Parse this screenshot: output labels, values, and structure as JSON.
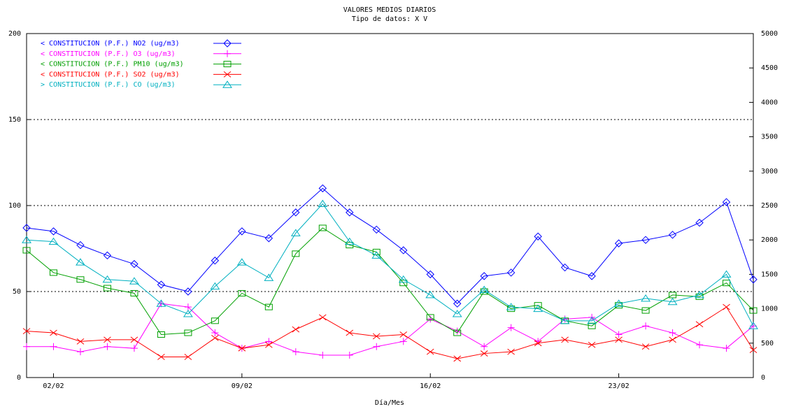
{
  "chart_data": {
    "type": "line",
    "title": "VALORES MEDIOS DIARIOS",
    "subtitle": "Tipo de datos:  X V",
    "x_label": "Día/Mes",
    "categories": [
      null,
      "02/02",
      null,
      null,
      null,
      null,
      null,
      null,
      "09/02",
      null,
      null,
      null,
      null,
      null,
      null,
      "16/02",
      null,
      null,
      null,
      null,
      null,
      null,
      "23/02",
      null,
      null,
      null,
      null,
      null
    ],
    "ylim": [
      0,
      200
    ],
    "yticks": [
      0,
      50,
      100,
      150,
      200
    ],
    "y2lim": [
      0,
      5000
    ],
    "y2ticks": [
      0,
      500,
      1000,
      1500,
      2000,
      2500,
      3000,
      3500,
      4000,
      4500,
      5000
    ],
    "grid": true,
    "legend": "top-left",
    "series": [
      {
        "name": "< CONSTITUCION (P.F.) NO2  (ug/m3)",
        "color": "#0000ff",
        "marker": "diamond",
        "values": [
          87,
          85,
          77,
          71,
          66,
          54,
          50,
          68,
          85,
          81,
          96,
          110,
          96,
          86,
          74,
          60,
          43,
          59,
          61,
          82,
          64,
          59,
          78,
          80,
          83,
          90,
          102,
          57
        ]
      },
      {
        "name": "< CONSTITUCION (P.F.) O3  (ug/m3)",
        "color": "#ff00ff",
        "marker": "plus",
        "values": [
          18,
          18,
          15,
          18,
          17,
          43,
          41,
          26,
          17,
          21,
          15,
          13,
          13,
          18,
          21,
          34,
          27,
          18,
          29,
          21,
          34,
          35,
          25,
          30,
          26,
          19,
          17,
          30
        ]
      },
      {
        "name": "< CONSTITUCION (P.F.) PM10  (ug/m3)",
        "color": "#00a000",
        "marker": "square",
        "values": [
          74,
          61,
          57,
          52,
          49,
          25,
          26,
          33,
          49,
          41,
          72,
          87,
          77,
          73,
          55,
          35,
          26,
          50,
          40,
          42,
          33,
          30,
          42,
          39,
          48,
          47,
          55,
          39
        ]
      },
      {
        "name": "< CONSTITUCION (P.F.) SO2  (ug/m3)",
        "color": "#ff0000",
        "marker": "x",
        "values": [
          27,
          26,
          21,
          22,
          22,
          12,
          12,
          23,
          17,
          19,
          28,
          35,
          26,
          24,
          25,
          15,
          11,
          14,
          15,
          20,
          22,
          19,
          22,
          18,
          22,
          31,
          41,
          16
        ]
      },
      {
        "name": "> CONSTITUCION (P.F.) CO  (ug/m3)",
        "color": "#00b0c0",
        "marker": "triangle",
        "values": [
          80,
          79,
          67,
          57,
          56,
          43,
          37,
          53,
          67,
          58,
          84,
          101,
          79,
          71,
          57,
          48,
          37,
          51,
          41,
          40,
          33,
          33,
          43,
          46,
          44,
          48,
          60,
          30
        ]
      }
    ]
  }
}
